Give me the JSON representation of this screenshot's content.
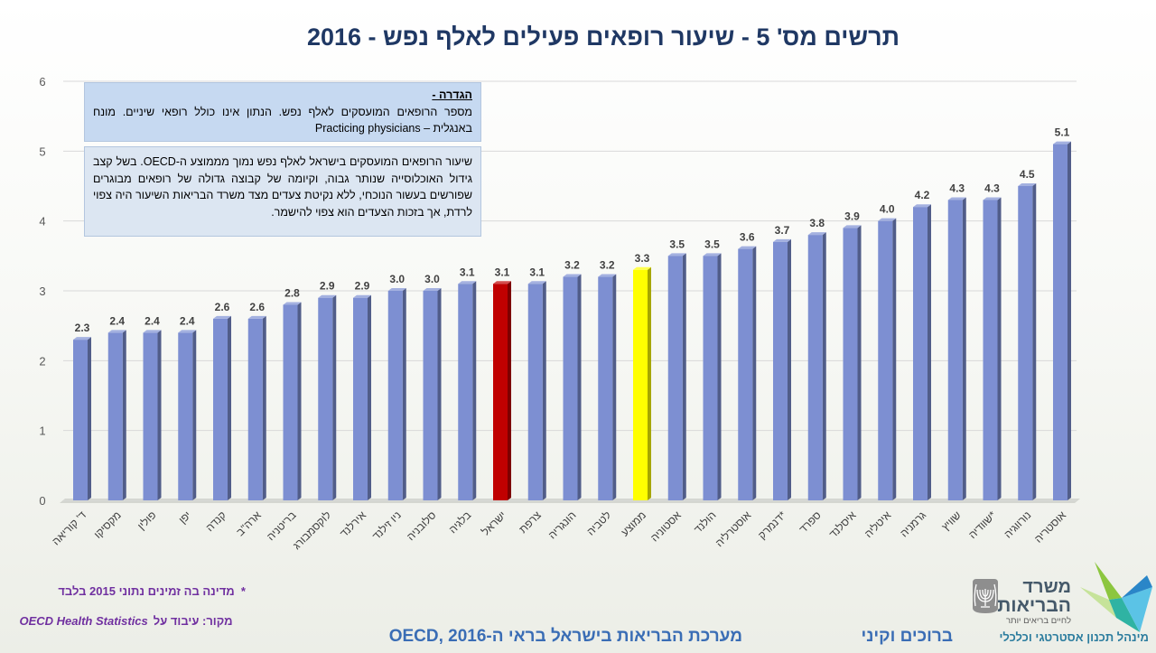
{
  "chart_data": {
    "type": "bar",
    "title": "תרשים מס' 5 - שיעור רופאים פעילים לאלף נפש - 2016",
    "categories": [
      "ד' קוריאה",
      "מקסיקו",
      "פולין",
      "יפן",
      "קנדה",
      "ארה\"ב",
      "בריטניה",
      "לוקסמבורג",
      "אירלנד",
      "ניו זילנד",
      "סלובניה",
      "בלגיה",
      "ישראל",
      "צרפת",
      "הונגריה",
      "לטביה",
      "ממוצע",
      "אסטוניה",
      "הולנד",
      "אוסטרליה",
      "דנמרק*",
      "ספרד",
      "איסלנד",
      "איטליה",
      "גרמניה",
      "שוויץ",
      "שוודיה*",
      "נורווגיה",
      "אוסטריה"
    ],
    "values": [
      2.3,
      2.4,
      2.4,
      2.4,
      2.6,
      2.6,
      2.8,
      2.9,
      2.9,
      3.0,
      3.0,
      3.1,
      3.1,
      3.1,
      3.2,
      3.2,
      3.3,
      3.5,
      3.5,
      3.6,
      3.7,
      3.8,
      3.9,
      4.0,
      4.2,
      4.3,
      4.3,
      4.5,
      5.1
    ],
    "colors": [
      "#7d8fd2",
      "#7d8fd2",
      "#7d8fd2",
      "#7d8fd2",
      "#7d8fd2",
      "#7d8fd2",
      "#7d8fd2",
      "#7d8fd2",
      "#7d8fd2",
      "#7d8fd2",
      "#7d8fd2",
      "#7d8fd2",
      "#c00000",
      "#7d8fd2",
      "#7d8fd2",
      "#7d8fd2",
      "#ffff00",
      "#7d8fd2",
      "#7d8fd2",
      "#7d8fd2",
      "#7d8fd2",
      "#7d8fd2",
      "#7d8fd2",
      "#7d8fd2",
      "#7d8fd2",
      "#7d8fd2",
      "#7d8fd2",
      "#7d8fd2",
      "#7d8fd2"
    ],
    "ylim": [
      0,
      6
    ],
    "yticks": [
      0,
      1,
      2,
      3,
      4,
      5,
      6
    ],
    "grid": true
  },
  "definition_box": {
    "heading": "הגדרה -",
    "text": "מספר הרופאים המועסקים לאלף נפש. הנתון אינו כולל רופאי שיניים. מונח באנגלית –  Practicing physicians"
  },
  "commentary_box": {
    "text": "שיעור הרופאים המועסקים בישראל לאלף נפש נמוך מממוצע ה-OECD. בשל קצב גידול האוכלוסייה שנותר גבוה, וקיומה של קבוצה גדולה של רופאים מבוגרים שפורשים בעשור הנוכחי, ללא נקיטת צעדים מצד משרד הבריאות השיעור היה צפוי לרדת, אך בזכות הצעדים הוא צפוי להישמר."
  },
  "footnote": "*  מדינה בה זמינים נתוני 2015 בלבד",
  "source": {
    "label": "מקור: עיבוד על",
    "name": "OECD Health Statistics"
  },
  "footer": {
    "publication": "מערכת הבריאות בישראל בראי ה-OECD, 2016",
    "authors": "ברוכים וקיני"
  },
  "logo": {
    "line1": "משרד",
    "line2": "הבריאות",
    "tagline": "לחיים בריאים יותר",
    "division": "מינהל תכנון אסטרטגי וכלכלי",
    "emblem_icon": "state-emblem-icon",
    "mark_icon": "ministry-logo-icon"
  },
  "theme": {
    "title_color": "#1f3864",
    "note_color": "#7030a0",
    "footer_color": "#3a6db5"
  }
}
